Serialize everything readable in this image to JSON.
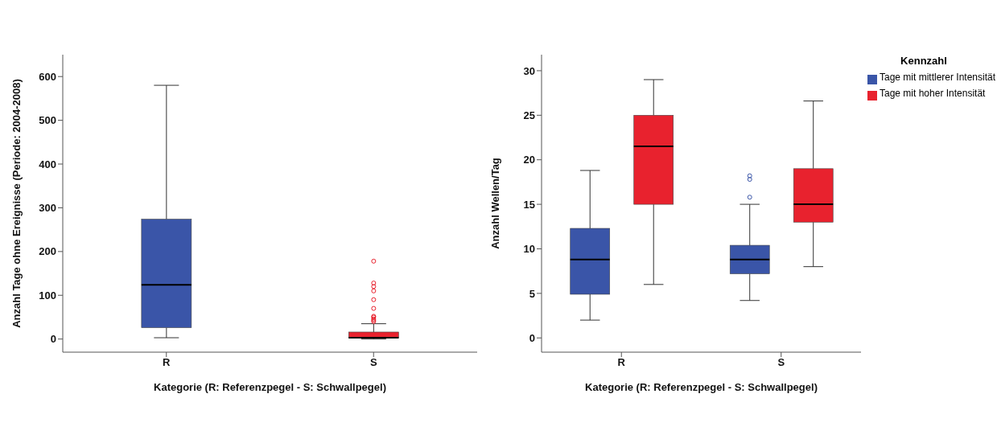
{
  "chart_data": [
    {
      "type": "box",
      "xlabel": "Kategorie (R: Referenzpegel - S: Schwallpegel)",
      "ylabel": "Anzahl Tage ohne Ereignisse (Periode: 2004-2008)",
      "categories": [
        "R",
        "S"
      ],
      "colors": [
        "#3a55a8",
        "#e8222e"
      ],
      "ylim": [
        -30,
        650
      ],
      "yticks": [
        0,
        100,
        200,
        300,
        400,
        500,
        600
      ],
      "boxes": [
        {
          "low": 3,
          "q1": 26,
          "median": 124,
          "q3": 274,
          "high": 580
        },
        {
          "low": 0,
          "q1": 2,
          "median": 3,
          "q3": 16,
          "high": 35,
          "outliers": [
            40,
            43,
            46,
            50,
            52,
            70,
            90,
            110,
            120,
            128,
            178
          ]
        }
      ]
    },
    {
      "type": "box",
      "xlabel": "Kategorie (R: Referenzpegel - S: Schwallpegel)",
      "ylabel": "Anzahl Wellen/Tag",
      "legend_title": "Kennzahl",
      "legend": "top right",
      "categories": [
        "R",
        "S"
      ],
      "ylim": [
        -1.6,
        31.8
      ],
      "yticks": [
        0,
        5,
        10,
        15,
        20,
        25,
        30
      ],
      "series": [
        {
          "name": "Tage mit mittlerer Intensität",
          "color": "#3a55a8",
          "boxes": [
            {
              "low": 2,
              "q1": 4.9,
              "median": 8.8,
              "q3": 12.3,
              "high": 18.8
            },
            {
              "low": 4.2,
              "q1": 7.2,
              "median": 8.8,
              "q3": 10.4,
              "high": 15,
              "outliers": [
                15.8,
                17.8,
                18.2
              ]
            }
          ]
        },
        {
          "name": "Tage mit hoher Intensität",
          "color": "#e8222e",
          "boxes": [
            {
              "low": 6,
              "q1": 15,
              "median": 21.5,
              "q3": 25,
              "high": 29
            },
            {
              "low": 8,
              "q1": 13,
              "median": 15,
              "q3": 19,
              "high": 26.6
            }
          ]
        }
      ]
    }
  ]
}
